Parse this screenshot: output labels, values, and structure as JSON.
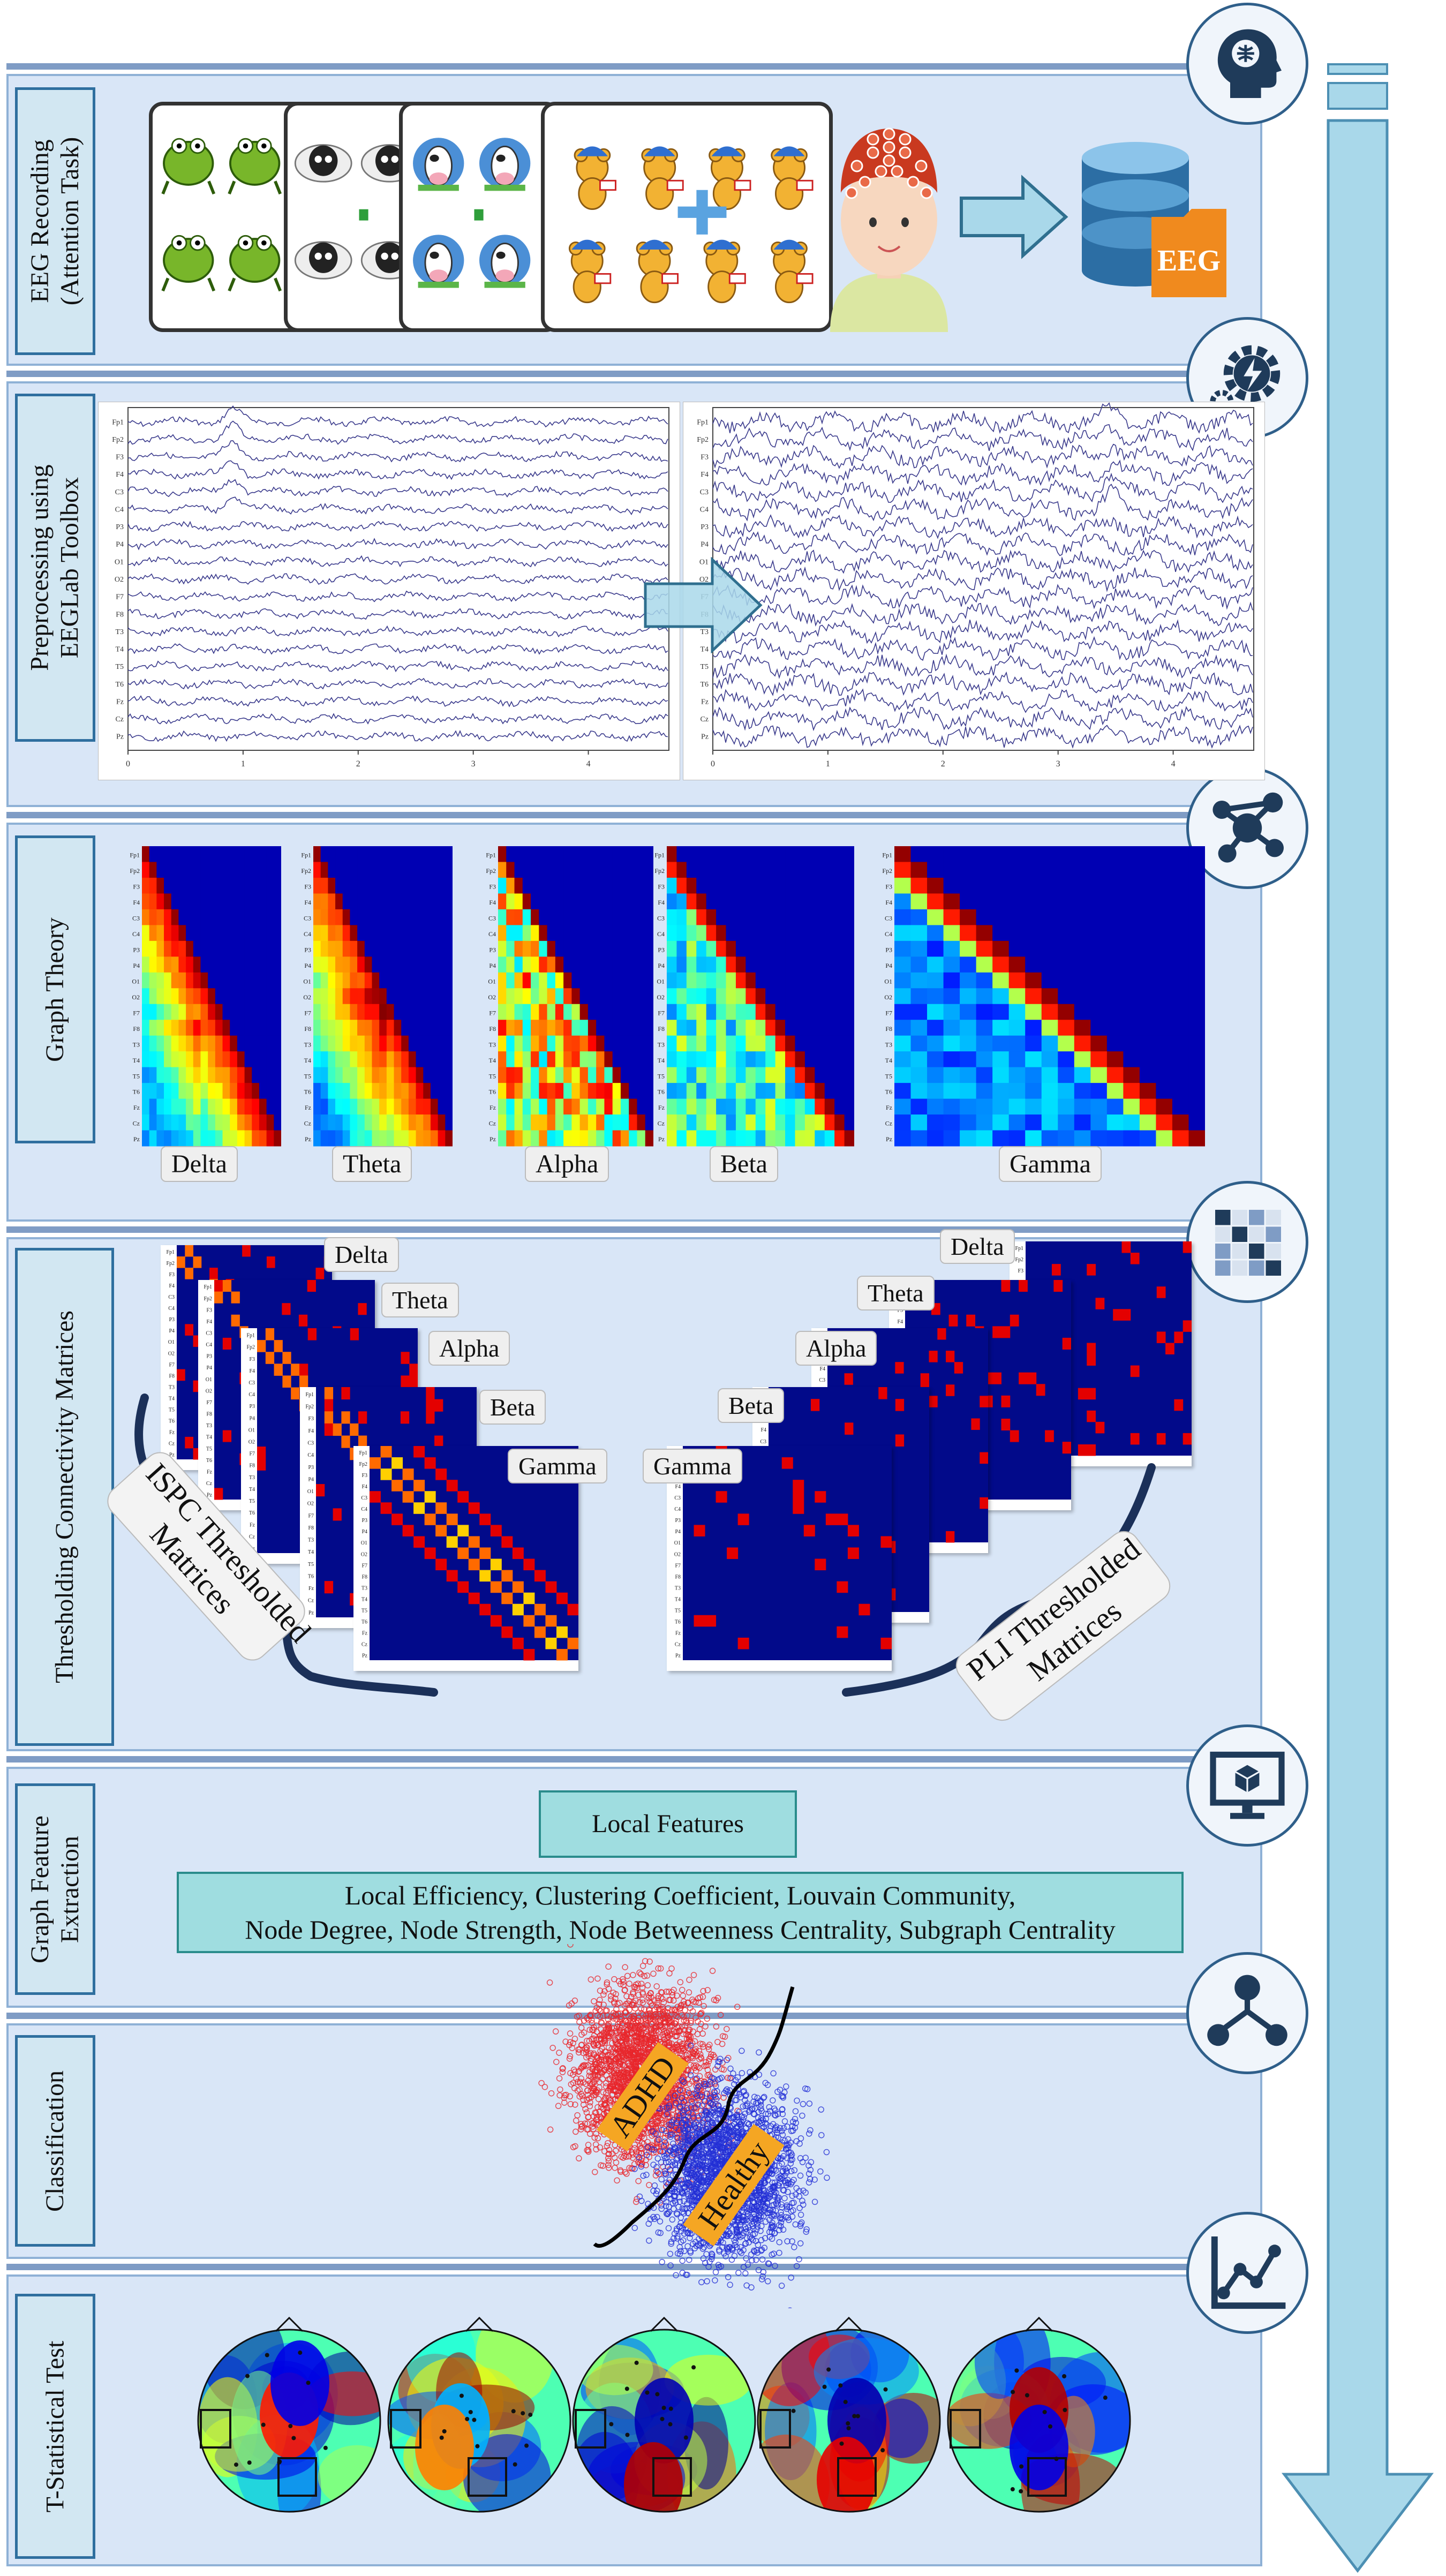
{
  "sections": {
    "eeg_recording": "EEG Recording\n(Attention Task)",
    "preprocessing": "Preprocessing using\nEEGLab Toolbox",
    "graph_theory": "Graph Theory",
    "thresholding": "Thresholding Connectivity Matrices",
    "feature_extraction": "Graph Feature\nExtraction",
    "classification": "Classification",
    "t_test": "T-Statistical Test"
  },
  "eeg_db_label": "EEG",
  "channels": [
    "Fp1",
    "Fp2",
    "F3",
    "F4",
    "C3",
    "C4",
    "P3",
    "P4",
    "O1",
    "O2",
    "F7",
    "F8",
    "T3",
    "T4",
    "T5",
    "T6",
    "Fz",
    "Cz",
    "Pz"
  ],
  "time_ticks": [
    "0",
    "1",
    "2",
    "3",
    "4"
  ],
  "bands": [
    "Delta",
    "Theta",
    "Alpha",
    "Beta",
    "Gamma"
  ],
  "ispc_label": "ISPC Thresholded\nMatrices",
  "pli_label": "PLI Thresholded\nMatrices",
  "local_features_title": "Local Features",
  "local_features_list_1": "Local Efficiency, Clustering Coefficient, Louvain Community,",
  "local_features_list_2": "Node Degree, Node Strength, Node Betweenness Centrality, Subgraph Centrality",
  "class_adhd": "ADHD",
  "class_healthy": "Healthy",
  "icons": [
    "brain-head-icon",
    "gear-lightning-icon",
    "network-graph-icon",
    "matrix-grid-icon",
    "monitor-cube-icon",
    "hierarchy-tree-icon",
    "line-chart-icon"
  ],
  "colors": {
    "panel": "#d9e6f7",
    "border": "#8fb1d6",
    "label_border": "#2f6f9f",
    "arrow": "#a9d8ea",
    "adhd": "#e8262b",
    "healthy": "#2330d6",
    "feature_box": "#9fdde0"
  }
}
